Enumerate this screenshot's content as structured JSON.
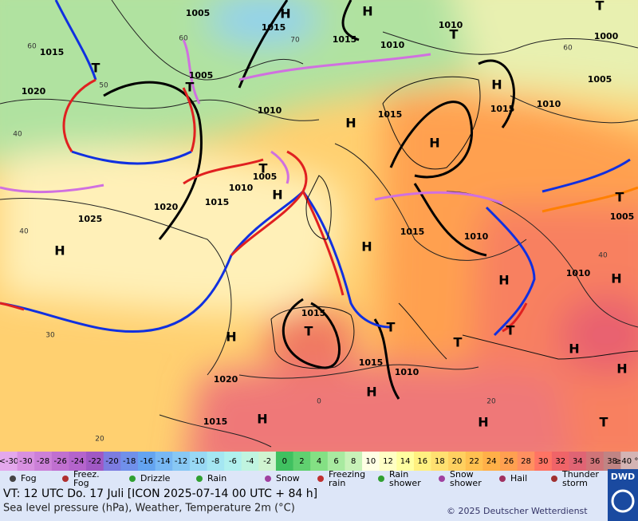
{
  "map": {
    "pressure_labels": [
      "1005",
      "1015",
      "1015",
      "1010",
      "1000",
      "1015",
      "1010",
      "1005",
      "1005",
      "1020",
      "1010",
      "1015",
      "1015",
      "1010",
      "1005",
      "1010",
      "1015",
      "1020",
      "1025",
      "1005",
      "1015",
      "1010",
      "1010",
      "1015",
      "1015",
      "1010",
      "1020",
      "1015"
    ],
    "grid_labels": [
      "60",
      "70",
      "60",
      "50",
      "60",
      "40",
      "40",
      "30",
      "20",
      "0",
      "20",
      "40"
    ],
    "systems": [
      "H",
      "H",
      "T",
      "T",
      "T",
      "T",
      "H",
      "H",
      "H",
      "T",
      "H",
      "T",
      "H",
      "H",
      "H",
      "H",
      "T",
      "T",
      "T",
      "T",
      "H",
      "H",
      "H",
      "H",
      "H",
      "H",
      "T"
    ]
  },
  "scale": [
    {
      "label": "<-30",
      "color": "#e4a8ec"
    },
    {
      "label": "-30",
      "color": "#d890e0"
    },
    {
      "label": "-28",
      "color": "#cc80d8"
    },
    {
      "label": "-26",
      "color": "#c070d0"
    },
    {
      "label": "-24",
      "color": "#b464cc"
    },
    {
      "label": "-22",
      "color": "#a058c4"
    },
    {
      "label": "-20",
      "color": "#7c7ce0"
    },
    {
      "label": "-18",
      "color": "#7090ea"
    },
    {
      "label": "-16",
      "color": "#64a4f0"
    },
    {
      "label": "-14",
      "color": "#78b8f4"
    },
    {
      "label": "-12",
      "color": "#88c8f4"
    },
    {
      "label": "-10",
      "color": "#98d8f4"
    },
    {
      "label": "-8",
      "color": "#a4e6f2"
    },
    {
      "label": "-6",
      "color": "#b0f0ee"
    },
    {
      "label": "-4",
      "color": "#c0f4e0"
    },
    {
      "label": "-2",
      "color": "#d0f4d0"
    },
    {
      "label": "0",
      "color": "#40c060"
    },
    {
      "label": "2",
      "color": "#60d070"
    },
    {
      "label": "4",
      "color": "#84e084"
    },
    {
      "label": "6",
      "color": "#a8eaa0"
    },
    {
      "label": "8",
      "color": "#c8f2b8"
    },
    {
      "label": "10",
      "color": "#ffffe4"
    },
    {
      "label": "12",
      "color": "#ffffc4"
    },
    {
      "label": "14",
      "color": "#ffffa0"
    },
    {
      "label": "16",
      "color": "#fff080"
    },
    {
      "label": "18",
      "color": "#ffe070"
    },
    {
      "label": "20",
      "color": "#ffd060"
    },
    {
      "label": "22",
      "color": "#ffc050"
    },
    {
      "label": "24",
      "color": "#ffb048"
    },
    {
      "label": "26",
      "color": "#ffa050"
    },
    {
      "label": "28",
      "color": "#ff9060"
    },
    {
      "label": "30",
      "color": "#ff7464"
    },
    {
      "label": "32",
      "color": "#f06468"
    },
    {
      "label": "34",
      "color": "#e06474"
    },
    {
      "label": "36",
      "color": "#d07478"
    },
    {
      "label": "38",
      "color": "#c08484"
    },
    {
      "label": "≥40 °C",
      "color": "#d4b4b4"
    }
  ],
  "legend": [
    [
      "Fog"
    ],
    [
      "Freez.",
      "Fog"
    ],
    [
      "Drizzle"
    ],
    [
      "Rain"
    ],
    [
      "Snow"
    ],
    [
      "Freezing",
      "rain"
    ],
    [
      "Rain",
      "shower"
    ],
    [
      "Snow",
      "shower"
    ],
    [
      "Hail"
    ],
    [
      "Thunder",
      "storm"
    ]
  ],
  "footer": {
    "valid_time": "VT: 12 UTC Do.   17 Juli [ICON 2025-07-14  00 UTC + 84 h]",
    "subtitle": "Sea level pressure (hPa), Weather, Temperature 2m (°C)",
    "copyright": "© 2025 Deutscher Wetterdienst",
    "logo": "DWD"
  }
}
